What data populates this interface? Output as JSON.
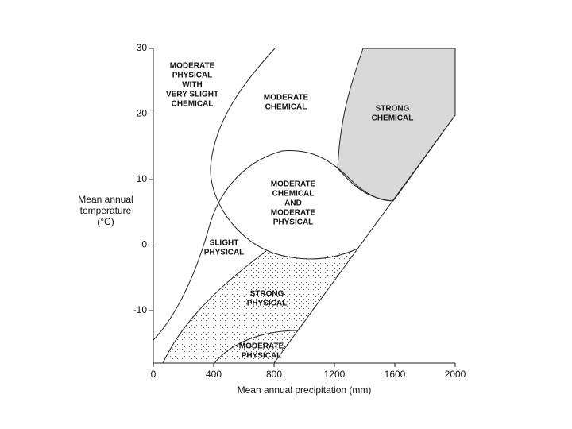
{
  "chart_data": {
    "type": "region",
    "x_label": "Mean annual precipitation (mm)",
    "y_label": [
      "Mean annual",
      "temperature",
      "(°C)"
    ],
    "xlim": [
      0,
      2000
    ],
    "ylim": [
      -18,
      30
    ],
    "xticks": [
      0,
      400,
      800,
      1200,
      1600,
      2000
    ],
    "yticks": [
      -10,
      0,
      10,
      20,
      30
    ],
    "annotations": [
      {
        "lines": [
          "MODERATE",
          "PHYSICAL",
          "WITH",
          "VERY SLIGHT",
          "CHEMICAL"
        ]
      },
      {
        "lines": [
          "MODERATE",
          "CHEMICAL"
        ]
      },
      {
        "lines": [
          "STRONG",
          "CHEMICAL"
        ]
      },
      {
        "lines": [
          "MODERATE",
          "CHEMICAL",
          "AND",
          "MODERATE",
          "PHYSICAL"
        ]
      },
      {
        "lines": [
          "SLIGHT",
          "PHYSICAL"
        ]
      },
      {
        "lines": [
          "STRONG",
          "PHYSICAL"
        ]
      },
      {
        "lines": [
          "MODERATE",
          "PHYSICAL"
        ]
      }
    ]
  }
}
